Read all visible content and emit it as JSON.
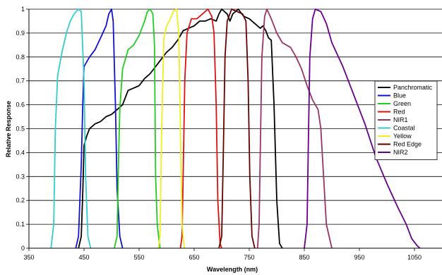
{
  "chart_data": {
    "type": "line",
    "title": "",
    "xlabel": "Wavelength (nm)",
    "ylabel": "Relative Response",
    "xlim": [
      350,
      1100
    ],
    "ylim": [
      0,
      1
    ],
    "x_ticks": [
      "350",
      "450",
      "550",
      "650",
      "750",
      "850",
      "950",
      "1050"
    ],
    "y_ticks": [
      "0",
      "0.1",
      "0.2",
      "0.3",
      "0.4",
      "0.5",
      "0.6",
      "0.7",
      "0.8",
      "0.9",
      "1"
    ],
    "grid": "horizontal",
    "legend_position": "right",
    "series": [
      {
        "name": "Panchromatic",
        "color": "#000000",
        "points": [
          [
            440,
            0
          ],
          [
            445,
            0.05
          ],
          [
            448,
            0.25
          ],
          [
            450,
            0.43
          ],
          [
            455,
            0.47
          ],
          [
            460,
            0.5
          ],
          [
            470,
            0.52
          ],
          [
            480,
            0.53
          ],
          [
            490,
            0.55
          ],
          [
            500,
            0.56
          ],
          [
            510,
            0.58
          ],
          [
            520,
            0.6
          ],
          [
            530,
            0.66
          ],
          [
            540,
            0.67
          ],
          [
            550,
            0.68
          ],
          [
            560,
            0.71
          ],
          [
            570,
            0.73
          ],
          [
            580,
            0.76
          ],
          [
            590,
            0.79
          ],
          [
            600,
            0.82
          ],
          [
            610,
            0.84
          ],
          [
            620,
            0.87
          ],
          [
            630,
            0.91
          ],
          [
            640,
            0.92
          ],
          [
            650,
            0.93
          ],
          [
            660,
            0.95
          ],
          [
            670,
            0.95
          ],
          [
            680,
            0.96
          ],
          [
            690,
            0.95
          ],
          [
            695,
            0.98
          ],
          [
            700,
            1.0
          ],
          [
            710,
            0.98
          ],
          [
            715,
            0.95
          ],
          [
            720,
            0.98
          ],
          [
            730,
            1.0
          ],
          [
            740,
            0.97
          ],
          [
            750,
            0.96
          ],
          [
            760,
            0.94
          ],
          [
            770,
            0.92
          ],
          [
            775,
            0.93
          ],
          [
            780,
            0.91
          ],
          [
            785,
            0.88
          ],
          [
            790,
            0.87
          ],
          [
            795,
            0.6
          ],
          [
            800,
            0.2
          ],
          [
            805,
            0.02
          ],
          [
            810,
            0
          ]
        ]
      },
      {
        "name": "Blue",
        "color": "#1111cc",
        "points": [
          [
            435,
            0
          ],
          [
            440,
            0.05
          ],
          [
            445,
            0.35
          ],
          [
            448,
            0.62
          ],
          [
            450,
            0.76
          ],
          [
            460,
            0.8
          ],
          [
            470,
            0.83
          ],
          [
            480,
            0.88
          ],
          [
            490,
            0.93
          ],
          [
            495,
            0.98
          ],
          [
            500,
            1.0
          ],
          [
            503,
            0.95
          ],
          [
            507,
            0.6
          ],
          [
            510,
            0.25
          ],
          [
            515,
            0.05
          ],
          [
            520,
            0
          ]
        ]
      },
      {
        "name": "Green",
        "color": "#22cc22",
        "points": [
          [
            505,
            0
          ],
          [
            510,
            0.05
          ],
          [
            513,
            0.4
          ],
          [
            515,
            0.58
          ],
          [
            520,
            0.75
          ],
          [
            530,
            0.83
          ],
          [
            540,
            0.85
          ],
          [
            550,
            0.89
          ],
          [
            560,
            0.95
          ],
          [
            565,
            0.99
          ],
          [
            570,
            1.0
          ],
          [
            575,
            0.98
          ],
          [
            578,
            0.85
          ],
          [
            580,
            0.3
          ],
          [
            583,
            0.1
          ],
          [
            588,
            0
          ]
        ]
      },
      {
        "name": "Red",
        "color": "#dd1111",
        "points": [
          [
            625,
            0
          ],
          [
            628,
            0.05
          ],
          [
            630,
            0.3
          ],
          [
            633,
            0.7
          ],
          [
            637,
            0.9
          ],
          [
            645,
            0.96
          ],
          [
            655,
            0.96
          ],
          [
            665,
            0.98
          ],
          [
            675,
            1.0
          ],
          [
            682,
            0.97
          ],
          [
            686,
            0.9
          ],
          [
            690,
            0.6
          ],
          [
            693,
            0.2
          ],
          [
            697,
            0.02
          ],
          [
            700,
            0
          ]
        ]
      },
      {
        "name": "NIR1",
        "color": "#993366",
        "points": [
          [
            765,
            0
          ],
          [
            768,
            0.1
          ],
          [
            770,
            0.4
          ],
          [
            773,
            0.8
          ],
          [
            778,
            0.97
          ],
          [
            782,
            1.0
          ],
          [
            790,
            0.96
          ],
          [
            800,
            0.9
          ],
          [
            810,
            0.86
          ],
          [
            825,
            0.84
          ],
          [
            835,
            0.8
          ],
          [
            845,
            0.75
          ],
          [
            855,
            0.68
          ],
          [
            865,
            0.62
          ],
          [
            875,
            0.58
          ],
          [
            880,
            0.5
          ],
          [
            885,
            0.3
          ],
          [
            890,
            0.1
          ],
          [
            900,
            0
          ]
        ]
      },
      {
        "name": "Coastal",
        "color": "#33cccc",
        "points": [
          [
            390,
            0
          ],
          [
            395,
            0.1
          ],
          [
            398,
            0.5
          ],
          [
            402,
            0.72
          ],
          [
            410,
            0.82
          ],
          [
            418,
            0.9
          ],
          [
            425,
            0.95
          ],
          [
            432,
            0.98
          ],
          [
            440,
            1.0
          ],
          [
            445,
            0.99
          ],
          [
            450,
            0.7
          ],
          [
            453,
            0.3
          ],
          [
            457,
            0.05
          ],
          [
            462,
            0
          ]
        ]
      },
      {
        "name": "Yellow",
        "color": "#eeee22",
        "points": [
          [
            585,
            0
          ],
          [
            588,
            0.05
          ],
          [
            591,
            0.5
          ],
          [
            595,
            0.88
          ],
          [
            600,
            0.93
          ],
          [
            605,
            0.95
          ],
          [
            612,
            0.99
          ],
          [
            618,
            1.0
          ],
          [
            622,
            0.9
          ],
          [
            625,
            0.5
          ],
          [
            628,
            0.1
          ],
          [
            632,
            0
          ]
        ]
      },
      {
        "name": "Red Edge",
        "color": "#660000",
        "points": [
          [
            695,
            0
          ],
          [
            700,
            0.05
          ],
          [
            703,
            0.4
          ],
          [
            706,
            0.8
          ],
          [
            710,
            0.95
          ],
          [
            718,
            1.0
          ],
          [
            728,
            0.99
          ],
          [
            738,
            0.98
          ],
          [
            744,
            0.95
          ],
          [
            748,
            0.7
          ],
          [
            751,
            0.3
          ],
          [
            755,
            0.05
          ],
          [
            760,
            0
          ]
        ]
      },
      {
        "name": "NIR2",
        "color": "#660088",
        "points": [
          [
            850,
            0
          ],
          [
            855,
            0.1
          ],
          [
            857,
            0.4
          ],
          [
            860,
            0.8
          ],
          [
            865,
            0.96
          ],
          [
            870,
            1.0
          ],
          [
            880,
            0.99
          ],
          [
            890,
            0.94
          ],
          [
            900,
            0.86
          ],
          [
            920,
            0.76
          ],
          [
            940,
            0.64
          ],
          [
            960,
            0.52
          ],
          [
            980,
            0.38
          ],
          [
            1000,
            0.27
          ],
          [
            1020,
            0.17
          ],
          [
            1035,
            0.1
          ],
          [
            1045,
            0.04
          ],
          [
            1055,
            0.01
          ],
          [
            1060,
            0
          ]
        ]
      }
    ]
  }
}
